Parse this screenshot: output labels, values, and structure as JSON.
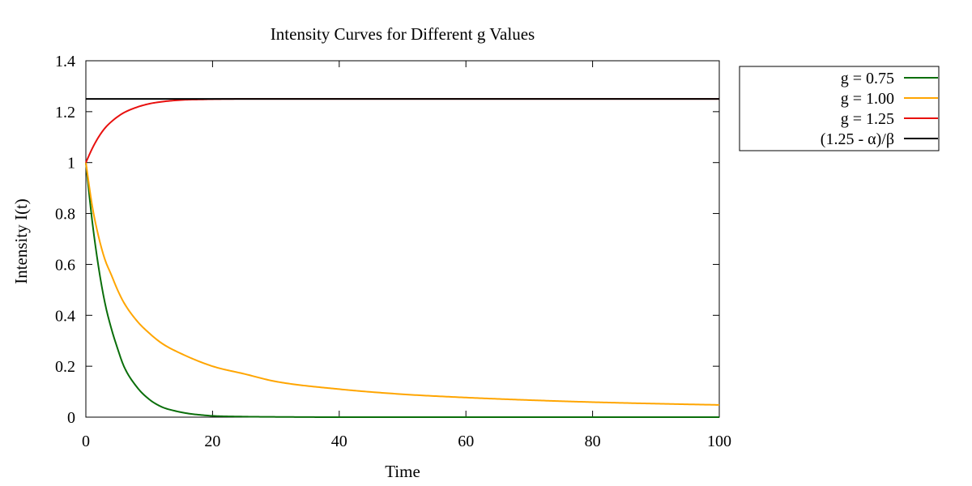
{
  "chart_data": {
    "type": "line",
    "title": "Intensity Curves for Different g Values",
    "xlabel": "Time",
    "ylabel": "Intensity I(t)",
    "xlim": [
      0,
      100
    ],
    "ylim": [
      0,
      1.4
    ],
    "xticks": [
      0,
      20,
      40,
      60,
      80,
      100
    ],
    "yticks": [
      0,
      0.2,
      0.4,
      0.6,
      0.8,
      1,
      1.2,
      1.4
    ],
    "xtick_labels": [
      "0",
      "20",
      "40",
      "60",
      "80",
      "100"
    ],
    "ytick_labels": [
      "0",
      "0.2",
      "0.4",
      "0.6",
      "0.8",
      "1",
      "1.2",
      "1.4"
    ],
    "grid": false,
    "legend_position": "outside-top-right",
    "series": [
      {
        "name": "g = 0.75",
        "color": "#0a6e0a",
        "x": [
          0,
          1,
          2,
          3,
          4,
          5,
          6,
          8,
          10,
          12,
          14,
          16,
          18,
          20,
          25,
          30,
          40,
          50,
          60,
          70,
          80,
          90,
          100
        ],
        "y": [
          1,
          0.77,
          0.59,
          0.45,
          0.35,
          0.27,
          0.2,
          0.12,
          0.07,
          0.04,
          0.025,
          0.015,
          0.009,
          0.005,
          0.002,
          0.001,
          0,
          0,
          0,
          0,
          0,
          0,
          0
        ]
      },
      {
        "name": "g = 1.00",
        "color": "#ffa500",
        "x": [
          0,
          1,
          2,
          3,
          4,
          5,
          6,
          8,
          10,
          12,
          15,
          20,
          25,
          30,
          40,
          50,
          60,
          70,
          80,
          90,
          100
        ],
        "y": [
          1,
          0.83,
          0.71,
          0.62,
          0.56,
          0.5,
          0.45,
          0.38,
          0.33,
          0.29,
          0.25,
          0.2,
          0.17,
          0.14,
          0.11,
          0.09,
          0.077,
          0.067,
          0.059,
          0.053,
          0.048
        ]
      },
      {
        "name": "g = 1.25",
        "color": "#e8100e",
        "x": [
          0,
          1,
          2,
          3,
          4,
          5,
          6,
          8,
          10,
          12,
          14,
          16,
          18,
          20,
          25,
          30,
          40,
          50,
          60,
          70,
          80,
          90,
          100
        ],
        "y": [
          1,
          1.055,
          1.1,
          1.135,
          1.16,
          1.18,
          1.196,
          1.217,
          1.231,
          1.239,
          1.244,
          1.247,
          1.248,
          1.249,
          1.25,
          1.25,
          1.25,
          1.25,
          1.25,
          1.25,
          1.25,
          1.25,
          1.25
        ]
      },
      {
        "name": "(1.25 - α)/β",
        "color": "#000000",
        "x": [
          0,
          100
        ],
        "y": [
          1.25,
          1.25
        ]
      }
    ]
  }
}
